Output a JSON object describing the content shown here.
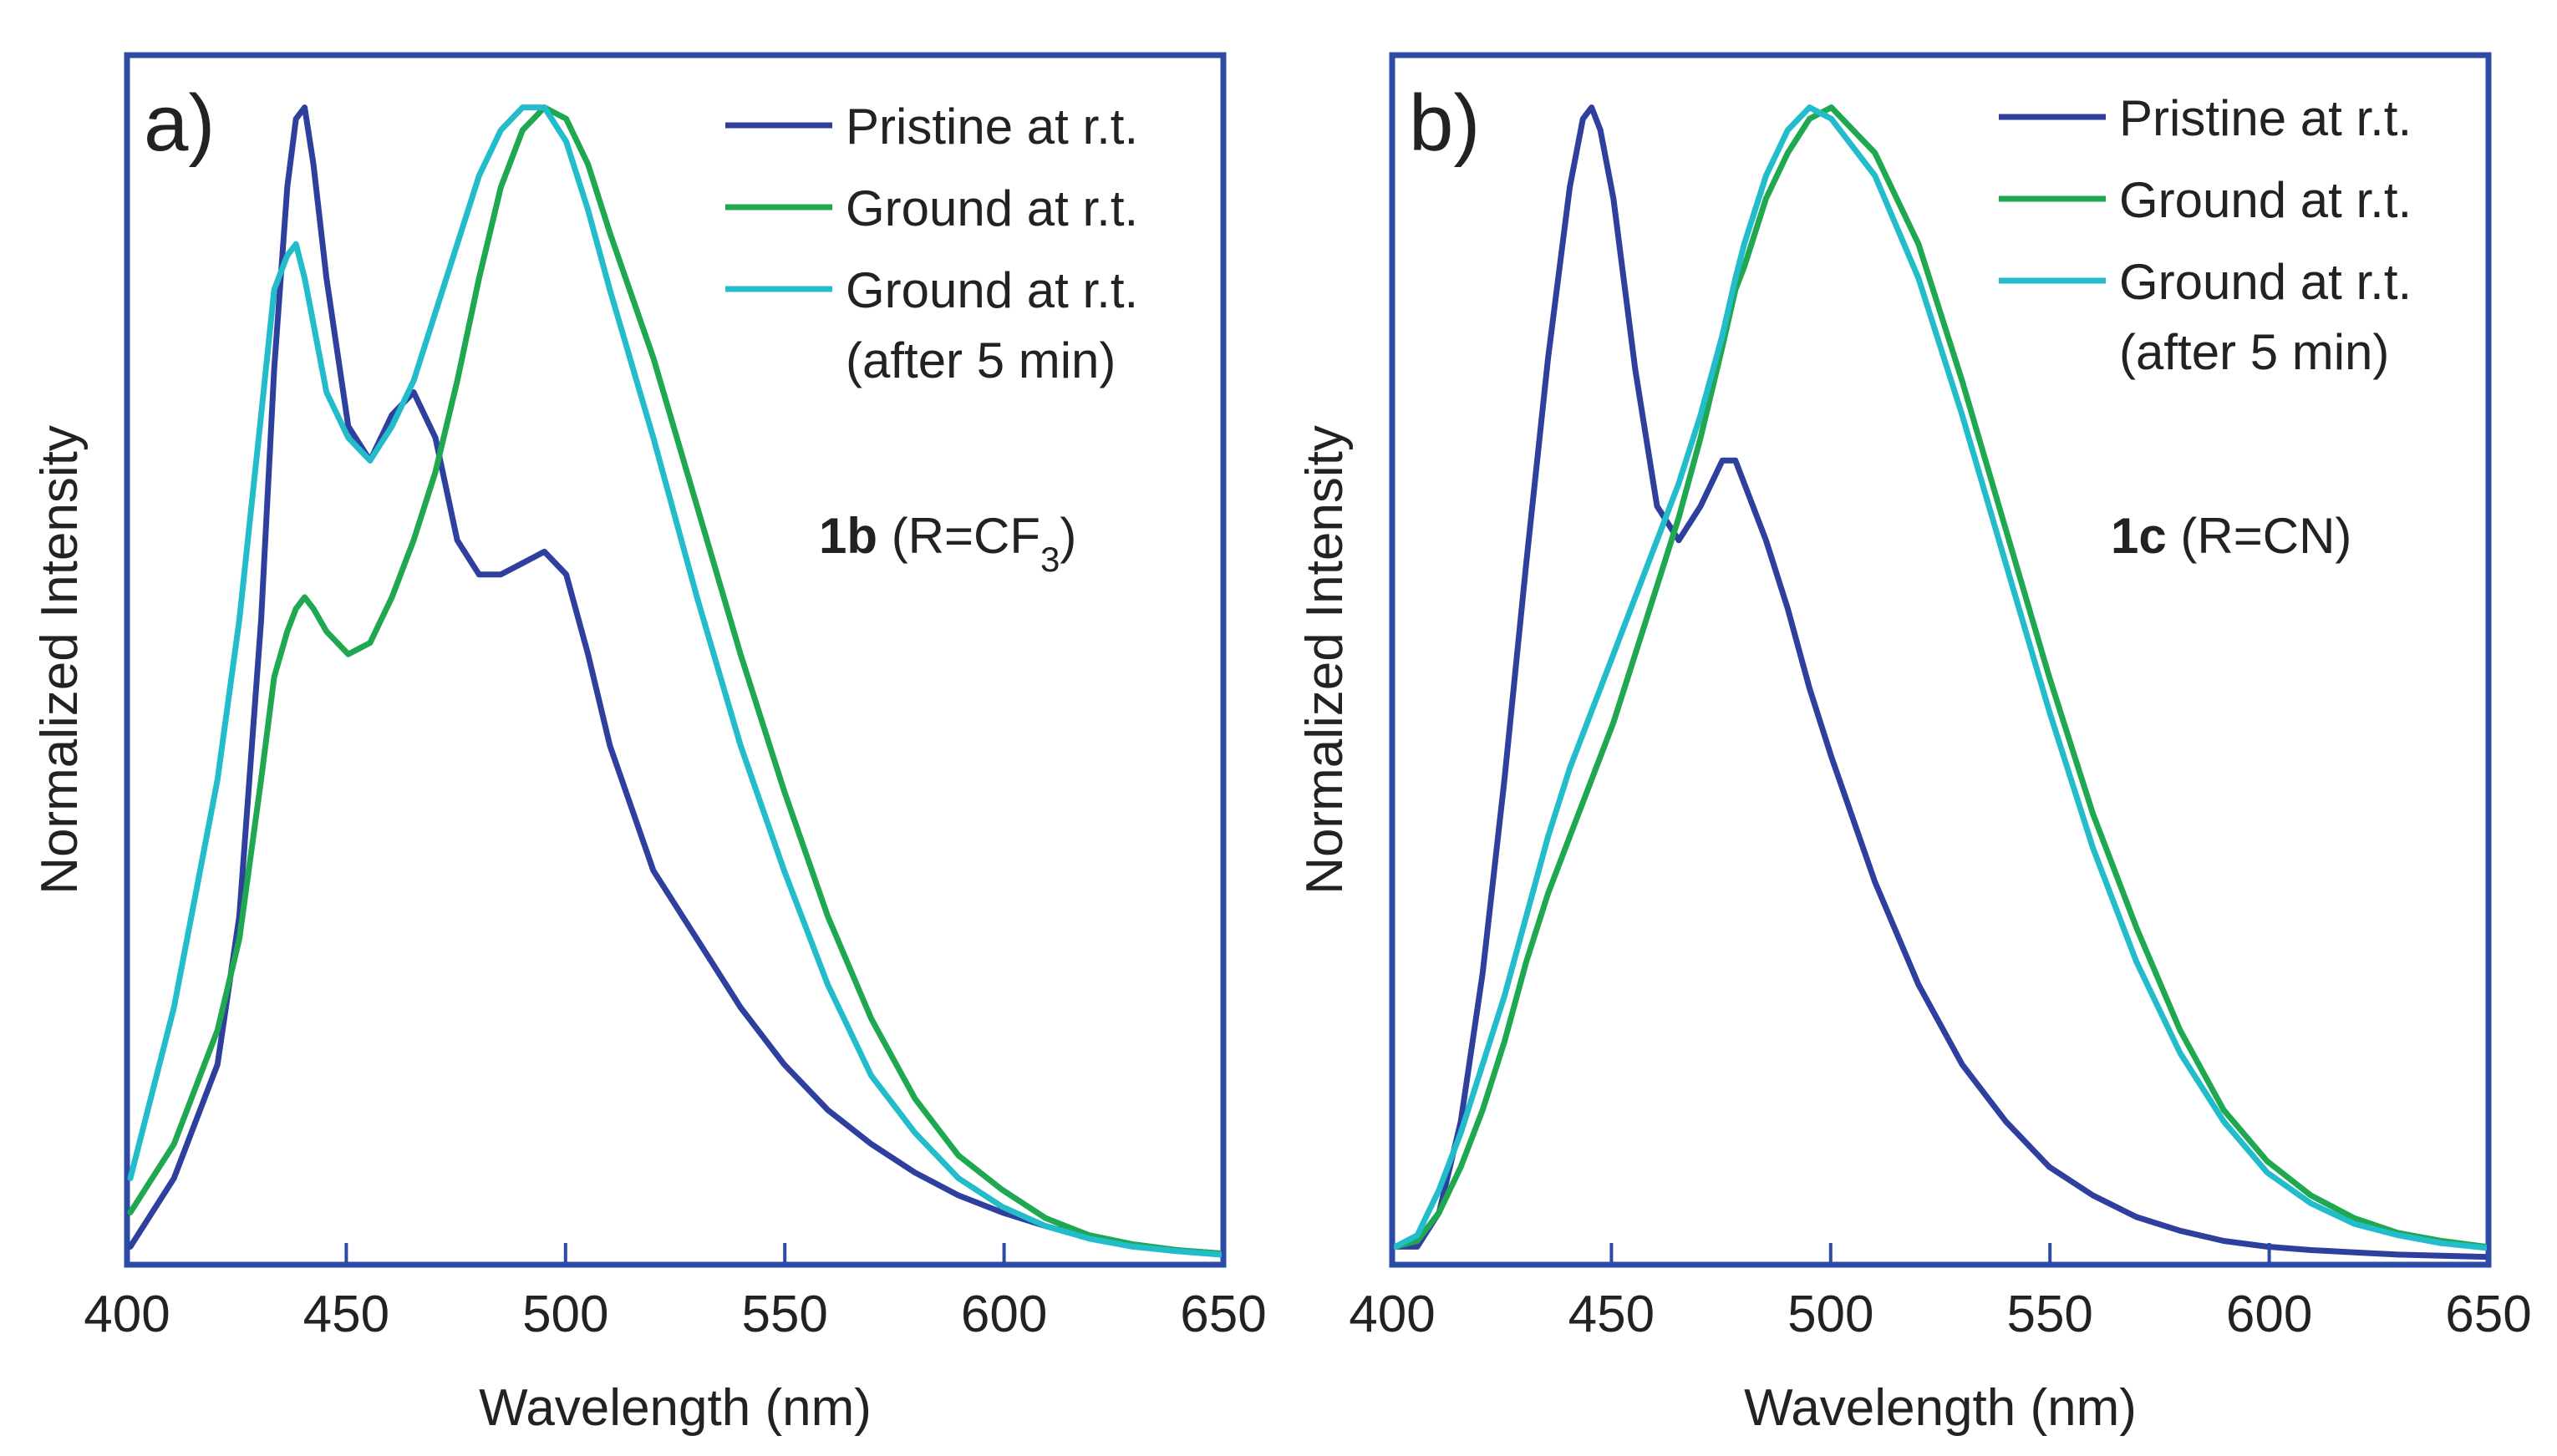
{
  "colors": {
    "frame": "#2b4ba6",
    "pristine": "#2e3f9e",
    "ground": "#1fa84f",
    "ground_after": "#22bccb"
  },
  "chart_data": [
    {
      "type": "line",
      "panel_label": "a)",
      "title": "",
      "compound": {
        "bold": "1b",
        "text": " (R=CF",
        "sub": "3",
        "close": ")"
      },
      "xlabel": "Wavelength (nm)",
      "ylabel": "Normalized Intensity",
      "xlim": [
        400,
        650
      ],
      "ylim": [
        0,
        1.05
      ],
      "xticks": [
        "400",
        "450",
        "500",
        "550",
        "600",
        "650"
      ],
      "legend": [
        "Pristine at r.t.",
        "Ground at r.t.",
        "Ground at r.t.",
        "(after 5 min)"
      ],
      "series": [
        {
          "name": "Pristine at r.t.",
          "color_key": "pristine",
          "x": [
            400,
            410,
            420,
            425,
            430,
            433,
            436,
            438,
            440,
            442,
            445,
            450,
            455,
            460,
            465,
            470,
            475,
            480,
            485,
            490,
            495,
            500,
            505,
            510,
            520,
            530,
            540,
            550,
            560,
            570,
            580,
            590,
            600,
            610,
            620,
            630,
            640,
            650
          ],
          "y": [
            0.01,
            0.07,
            0.17,
            0.3,
            0.56,
            0.78,
            0.94,
            1.0,
            1.01,
            0.96,
            0.86,
            0.73,
            0.7,
            0.74,
            0.76,
            0.72,
            0.63,
            0.6,
            0.6,
            0.61,
            0.62,
            0.6,
            0.53,
            0.45,
            0.34,
            0.28,
            0.22,
            0.17,
            0.13,
            0.1,
            0.075,
            0.055,
            0.04,
            0.028,
            0.018,
            0.012,
            0.007,
            0.004
          ]
        },
        {
          "name": "Ground at r.t.",
          "color_key": "ground",
          "x": [
            400,
            410,
            420,
            425,
            430,
            433,
            436,
            438,
            440,
            442,
            445,
            450,
            455,
            460,
            465,
            470,
            475,
            480,
            485,
            490,
            495,
            500,
            505,
            510,
            520,
            530,
            540,
            550,
            560,
            570,
            580,
            590,
            600,
            610,
            620,
            630,
            640,
            650
          ],
          "y": [
            0.04,
            0.1,
            0.2,
            0.28,
            0.42,
            0.51,
            0.55,
            0.57,
            0.58,
            0.57,
            0.55,
            0.53,
            0.54,
            0.58,
            0.63,
            0.69,
            0.77,
            0.86,
            0.94,
            0.99,
            1.01,
            1.0,
            0.96,
            0.9,
            0.79,
            0.66,
            0.53,
            0.41,
            0.3,
            0.21,
            0.14,
            0.09,
            0.06,
            0.035,
            0.02,
            0.012,
            0.007,
            0.004
          ]
        },
        {
          "name": "Ground at r.t. (after 5 min)",
          "color_key": "ground_after",
          "x": [
            400,
            410,
            420,
            425,
            430,
            433,
            436,
            438,
            440,
            442,
            445,
            450,
            455,
            460,
            465,
            470,
            475,
            480,
            485,
            490,
            495,
            500,
            505,
            510,
            520,
            530,
            540,
            550,
            560,
            570,
            580,
            590,
            600,
            610,
            620,
            630,
            640,
            650
          ],
          "y": [
            0.07,
            0.22,
            0.42,
            0.56,
            0.74,
            0.85,
            0.88,
            0.89,
            0.86,
            0.82,
            0.76,
            0.72,
            0.7,
            0.73,
            0.77,
            0.83,
            0.89,
            0.95,
            0.99,
            1.01,
            1.01,
            0.98,
            0.92,
            0.85,
            0.72,
            0.58,
            0.45,
            0.34,
            0.24,
            0.16,
            0.11,
            0.07,
            0.045,
            0.028,
            0.017,
            0.01,
            0.006,
            0.003
          ]
        }
      ]
    },
    {
      "type": "line",
      "panel_label": "b)",
      "title": "",
      "compound": {
        "bold": "1c",
        "text": " (R=CN)",
        "sub": "",
        "close": ""
      },
      "xlabel": "Wavelength (nm)",
      "ylabel": "Normalized Intensity",
      "xlim": [
        400,
        650
      ],
      "ylim": [
        0,
        1.05
      ],
      "xticks": [
        "400",
        "450",
        "500",
        "550",
        "600",
        "650"
      ],
      "legend": [
        "Pristine at r.t.",
        "Ground at r.t.",
        "Ground at r.t.",
        "(after 5 min)"
      ],
      "series": [
        {
          "name": "Pristine at r.t.",
          "color_key": "pristine",
          "x": [
            400,
            405,
            410,
            415,
            420,
            425,
            430,
            435,
            440,
            443,
            445,
            447,
            450,
            455,
            460,
            465,
            470,
            475,
            478,
            480,
            485,
            490,
            495,
            500,
            510,
            520,
            530,
            540,
            550,
            560,
            570,
            580,
            590,
            600,
            610,
            620,
            630,
            640,
            650
          ],
          "y": [
            0.01,
            0.01,
            0.04,
            0.12,
            0.25,
            0.42,
            0.61,
            0.79,
            0.94,
            1.0,
            1.01,
            0.99,
            0.93,
            0.78,
            0.66,
            0.63,
            0.66,
            0.7,
            0.7,
            0.68,
            0.63,
            0.57,
            0.5,
            0.44,
            0.33,
            0.24,
            0.17,
            0.12,
            0.08,
            0.055,
            0.036,
            0.024,
            0.015,
            0.01,
            0.007,
            0.005,
            0.003,
            0.002,
            0.001
          ]
        },
        {
          "name": "Ground at r.t.",
          "color_key": "ground",
          "x": [
            400,
            405,
            410,
            415,
            420,
            425,
            430,
            435,
            440,
            443,
            445,
            447,
            450,
            455,
            460,
            465,
            470,
            475,
            478,
            480,
            485,
            490,
            495,
            500,
            510,
            520,
            530,
            540,
            550,
            560,
            570,
            580,
            590,
            600,
            610,
            620,
            630,
            640,
            650
          ],
          "y": [
            0.01,
            0.015,
            0.04,
            0.08,
            0.13,
            0.19,
            0.26,
            0.32,
            0.37,
            0.4,
            0.42,
            0.44,
            0.47,
            0.53,
            0.59,
            0.65,
            0.72,
            0.8,
            0.85,
            0.87,
            0.93,
            0.97,
            1.0,
            1.01,
            0.97,
            0.89,
            0.77,
            0.64,
            0.51,
            0.39,
            0.29,
            0.2,
            0.13,
            0.085,
            0.055,
            0.035,
            0.022,
            0.015,
            0.01
          ]
        },
        {
          "name": "Ground at r.t. (after 5 min)",
          "color_key": "ground_after",
          "x": [
            400,
            405,
            410,
            415,
            420,
            425,
            430,
            435,
            440,
            443,
            445,
            447,
            450,
            455,
            460,
            465,
            470,
            475,
            478,
            480,
            485,
            490,
            495,
            500,
            510,
            520,
            530,
            540,
            550,
            560,
            570,
            580,
            590,
            600,
            610,
            620,
            630,
            640,
            650
          ],
          "y": [
            0.01,
            0.02,
            0.06,
            0.11,
            0.17,
            0.23,
            0.3,
            0.37,
            0.43,
            0.46,
            0.48,
            0.5,
            0.53,
            0.58,
            0.63,
            0.68,
            0.74,
            0.81,
            0.86,
            0.89,
            0.95,
            0.99,
            1.01,
            1.0,
            0.95,
            0.86,
            0.74,
            0.61,
            0.48,
            0.36,
            0.26,
            0.18,
            0.12,
            0.075,
            0.048,
            0.03,
            0.02,
            0.013,
            0.009
          ]
        }
      ]
    }
  ]
}
